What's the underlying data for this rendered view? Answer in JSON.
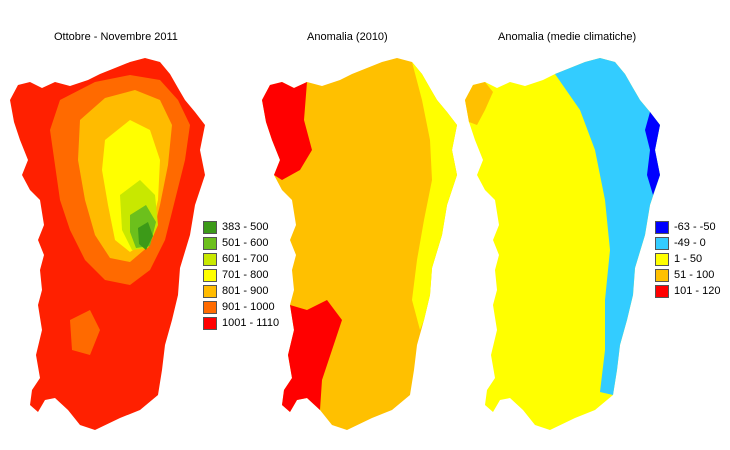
{
  "maps": [
    {
      "title": "Ottobre - Novembre 2011",
      "legend": [
        {
          "label": "383 - 500",
          "color": "#3c9a18"
        },
        {
          "label": "501 - 600",
          "color": "#6cc01c"
        },
        {
          "label": "601 - 700",
          "color": "#c8e800"
        },
        {
          "label": "701 - 800",
          "color": "#ffff00"
        },
        {
          "label": "801 - 900",
          "color": "#ffbb00"
        },
        {
          "label": "901 - 1000",
          "color": "#ff6a00"
        },
        {
          "label": "1001 - 1110",
          "color": "#ff0000"
        }
      ]
    },
    {
      "title": "Anomalia (2010)",
      "legend": []
    },
    {
      "title": "Anomalia (medie climatiche)",
      "legend": [
        {
          "label": "-63 - -50",
          "color": "#0000ff"
        },
        {
          "label": "-49 - 0",
          "color": "#33ccff"
        },
        {
          "label": "1 - 50",
          "color": "#ffff00"
        },
        {
          "label": "51 - 100",
          "color": "#ffc000"
        },
        {
          "label": "101 - 120",
          "color": "#ff0000"
        }
      ]
    }
  ]
}
